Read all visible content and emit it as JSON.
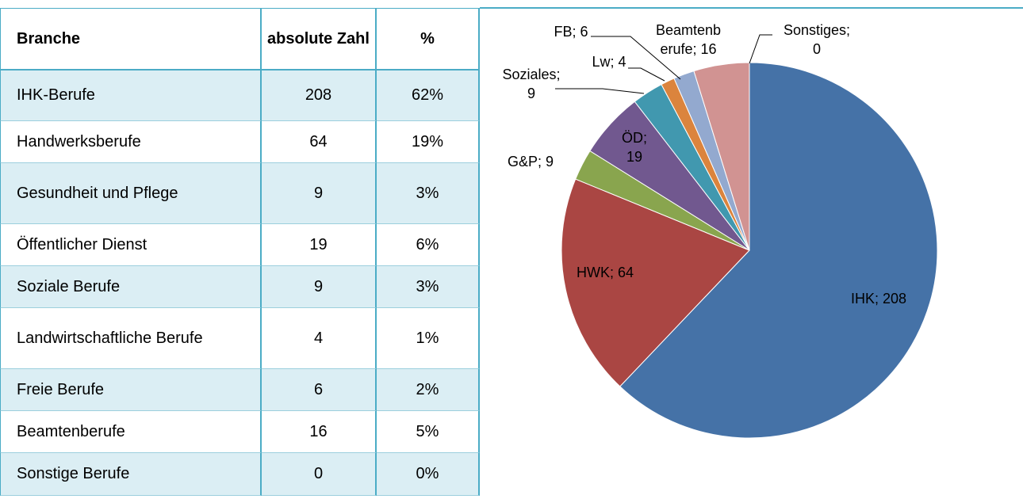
{
  "table": {
    "header": [
      "Branche",
      "absolute Zahl",
      "%"
    ],
    "rows": [
      [
        "IHK-Berufe",
        "208",
        "62%"
      ],
      [
        "Handwerksberufe",
        "64",
        "19%"
      ],
      [
        "Gesundheit und Pflege",
        "9",
        "3%"
      ],
      [
        "Öffentlicher Dienst",
        "19",
        "6%"
      ],
      [
        "Soziale Berufe",
        "9",
        "3%"
      ],
      [
        "Landwirtschaftliche Berufe",
        "4",
        "1%"
      ],
      [
        "Freie Berufe",
        "6",
        "2%"
      ],
      [
        "Beamtenberufe",
        "16",
        "5%"
      ],
      [
        "Sonstige Berufe",
        "0",
        "0%"
      ]
    ]
  },
  "chart_data": {
    "type": "pie",
    "values": [
      208,
      64,
      9,
      19,
      9,
      4,
      6,
      16,
      0
    ],
    "value_labels": [
      "IHK; 208",
      "HWK; 64",
      "G&P; 9",
      "ÖD;\n19",
      "Soziales;\n9",
      "Lw; 4",
      "FB; 6",
      "Beamtenb\nerufe; 16",
      "Sonstiges;\n0"
    ],
    "colors": [
      "#4572a7",
      "#aa4643",
      "#89a54e",
      "#71588f",
      "#4198af",
      "#db843d",
      "#93a9cf",
      "#d19392",
      "#7cb5ec"
    ]
  }
}
